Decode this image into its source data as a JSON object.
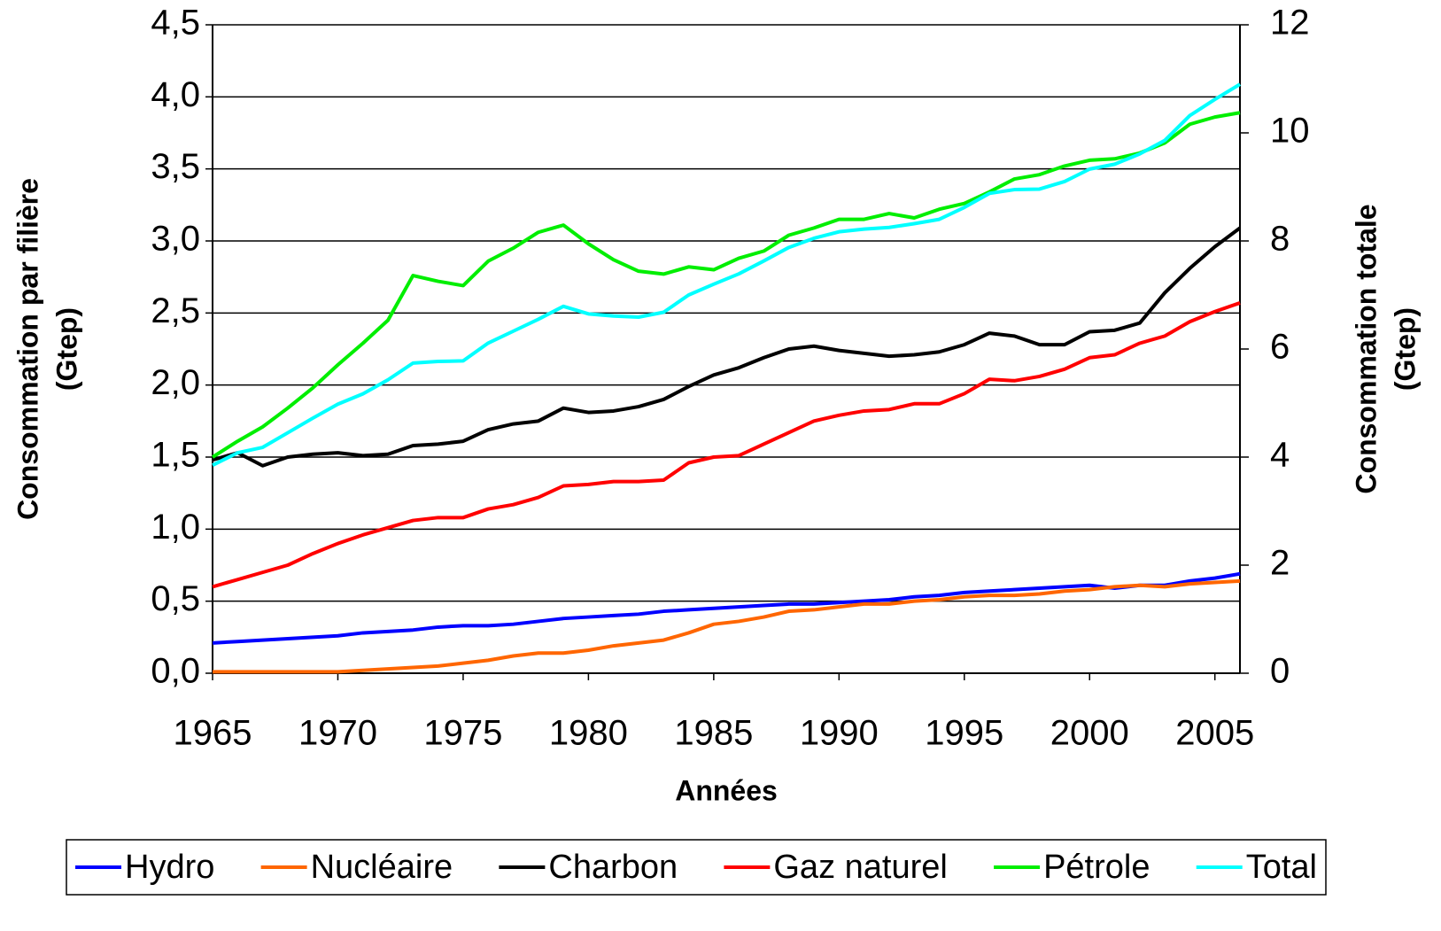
{
  "chart_data": {
    "type": "line",
    "x_label": "Années",
    "y_label": [
      "Consommation par filière",
      "(Gtep)"
    ],
    "y2_label": [
      "Consommation totale",
      "(Gtep)"
    ],
    "x": [
      1965,
      1966,
      1967,
      1968,
      1969,
      1970,
      1971,
      1972,
      1973,
      1974,
      1975,
      1976,
      1977,
      1978,
      1979,
      1980,
      1981,
      1982,
      1983,
      1984,
      1985,
      1986,
      1987,
      1988,
      1989,
      1990,
      1991,
      1992,
      1993,
      1994,
      1995,
      1996,
      1997,
      1998,
      1999,
      2000,
      2001,
      2002,
      2003,
      2004,
      2005,
      2006
    ],
    "xlim": [
      1965,
      2006
    ],
    "xticks": [
      1965,
      1970,
      1975,
      1980,
      1985,
      1990,
      1995,
      2000,
      2005
    ],
    "ylim": [
      0,
      4.5
    ],
    "yticks": [
      {
        "value": 0,
        "label": "0,0"
      },
      {
        "value": 0.5,
        "label": "0,5"
      },
      {
        "value": 1,
        "label": "1,0"
      },
      {
        "value": 1.5,
        "label": "1,5"
      },
      {
        "value": 2,
        "label": "2,0"
      },
      {
        "value": 2.5,
        "label": "2,5"
      },
      {
        "value": 3,
        "label": "3,0"
      },
      {
        "value": 3.5,
        "label": "3,5"
      },
      {
        "value": 4,
        "label": "4,0"
      },
      {
        "value": 4.5,
        "label": "4,5"
      }
    ],
    "y2lim": [
      0,
      12
    ],
    "y2ticks": [
      0,
      2,
      4,
      6,
      8,
      10,
      12
    ],
    "grid": true,
    "legend": "bottom",
    "series": [
      {
        "name": "Hydro",
        "color": "#0000ff",
        "values": [
          0.21,
          0.22,
          0.23,
          0.24,
          0.25,
          0.26,
          0.28,
          0.29,
          0.3,
          0.32,
          0.33,
          0.33,
          0.34,
          0.36,
          0.38,
          0.39,
          0.4,
          0.41,
          0.43,
          0.44,
          0.45,
          0.46,
          0.47,
          0.48,
          0.48,
          0.49,
          0.5,
          0.51,
          0.53,
          0.54,
          0.56,
          0.57,
          0.58,
          0.59,
          0.6,
          0.61,
          0.59,
          0.61,
          0.61,
          0.64,
          0.66,
          0.69
        ]
      },
      {
        "name": "Nucléaire",
        "color": "#ff6600",
        "values": [
          0.01,
          0.01,
          0.01,
          0.01,
          0.01,
          0.01,
          0.02,
          0.03,
          0.04,
          0.05,
          0.07,
          0.09,
          0.12,
          0.14,
          0.14,
          0.16,
          0.19,
          0.21,
          0.23,
          0.28,
          0.34,
          0.36,
          0.39,
          0.43,
          0.44,
          0.46,
          0.48,
          0.48,
          0.5,
          0.51,
          0.53,
          0.54,
          0.54,
          0.55,
          0.57,
          0.58,
          0.6,
          0.61,
          0.6,
          0.62,
          0.63,
          0.64
        ]
      },
      {
        "name": "Charbon",
        "color": "#000000",
        "values": [
          1.48,
          1.53,
          1.44,
          1.5,
          1.52,
          1.53,
          1.51,
          1.52,
          1.58,
          1.59,
          1.61,
          1.69,
          1.73,
          1.75,
          1.84,
          1.81,
          1.82,
          1.85,
          1.9,
          1.99,
          2.07,
          2.12,
          2.19,
          2.25,
          2.27,
          2.24,
          2.22,
          2.2,
          2.21,
          2.23,
          2.28,
          2.36,
          2.34,
          2.28,
          2.28,
          2.37,
          2.38,
          2.43,
          2.64,
          2.81,
          2.96,
          3.09
        ]
      },
      {
        "name": "Gaz naturel",
        "color": "#ff0000",
        "values": [
          0.6,
          0.65,
          0.7,
          0.75,
          0.83,
          0.9,
          0.96,
          1.01,
          1.06,
          1.08,
          1.08,
          1.14,
          1.17,
          1.22,
          1.3,
          1.31,
          1.33,
          1.33,
          1.34,
          1.46,
          1.5,
          1.51,
          1.59,
          1.67,
          1.75,
          1.79,
          1.82,
          1.83,
          1.87,
          1.87,
          1.94,
          2.04,
          2.03,
          2.06,
          2.11,
          2.19,
          2.21,
          2.29,
          2.34,
          2.44,
          2.51,
          2.57
        ]
      },
      {
        "name": "Pétrole",
        "color": "#00ee00",
        "values": [
          1.5,
          1.61,
          1.71,
          1.84,
          1.98,
          2.14,
          2.29,
          2.45,
          2.76,
          2.72,
          2.69,
          2.86,
          2.95,
          3.06,
          3.11,
          2.98,
          2.87,
          2.79,
          2.77,
          2.82,
          2.8,
          2.88,
          2.93,
          3.04,
          3.09,
          3.15,
          3.15,
          3.19,
          3.16,
          3.22,
          3.26,
          3.34,
          3.43,
          3.46,
          3.52,
          3.56,
          3.57,
          3.61,
          3.68,
          3.81,
          3.86,
          3.89
        ]
      },
      {
        "name": "Total",
        "color": "#00ffff",
        "axis": "y2",
        "values": [
          3.85,
          4.08,
          4.18,
          4.45,
          4.72,
          4.98,
          5.17,
          5.43,
          5.74,
          5.77,
          5.78,
          6.11,
          6.33,
          6.55,
          6.79,
          6.65,
          6.61,
          6.59,
          6.68,
          7.0,
          7.2,
          7.39,
          7.63,
          7.88,
          8.05,
          8.17,
          8.22,
          8.25,
          8.32,
          8.4,
          8.62,
          8.88,
          8.95,
          8.96,
          9.1,
          9.33,
          9.42,
          9.61,
          9.86,
          10.32,
          10.62,
          10.9
        ]
      }
    ]
  }
}
